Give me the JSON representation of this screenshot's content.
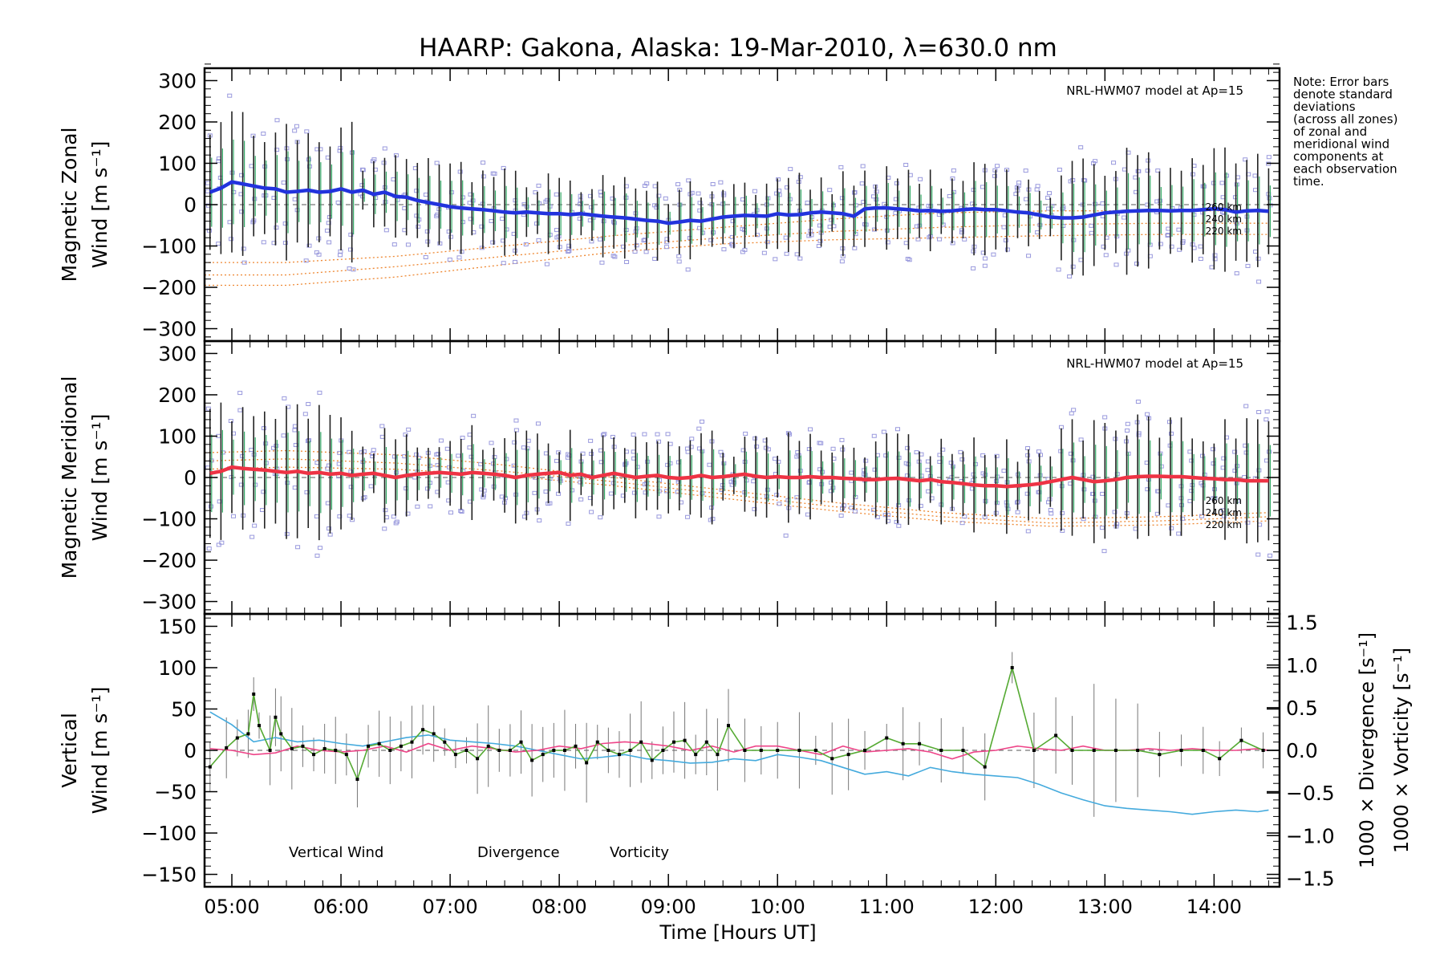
{
  "figure": {
    "title": "HAARP: Gakona,  Alaska: 19-Mar-2010, λ=630.0 nm",
    "note": [
      "Note: Error bars",
      "denote standard",
      "deviations",
      "(across all zones)",
      "of zonal and",
      "meridional wind",
      "components at",
      "each observation",
      "time."
    ],
    "xlabel": "Time [Hours UT]",
    "xticks": [
      "05:00",
      "06:00",
      "07:00",
      "08:00",
      "09:00",
      "10:00",
      "11:00",
      "12:00",
      "13:00",
      "14:00"
    ],
    "model_label": "NRL-HWM07 model at Ap=15",
    "altitude_labels": [
      "260 km",
      "240 km",
      "220 km"
    ],
    "colors": {
      "zonal": "#2233dd",
      "meridional": "#ee3344",
      "vertical": "#55aa33",
      "divergence": "#44aadd",
      "vorticity": "#ee4488",
      "model": "#ee8833",
      "scatter": "#9999dd",
      "errorbar": "#000000"
    }
  },
  "chart_data": [
    {
      "type": "line",
      "panel": "zonal",
      "ylabel": [
        "Magnetic Zonal",
        "Wind [m s⁻¹]"
      ],
      "ylim": [
        -330,
        330
      ],
      "yticks": [
        300,
        200,
        100,
        0,
        -100,
        -200,
        -300
      ],
      "xlim": [
        4.75,
        14.6
      ],
      "series": [
        {
          "x": [
            4.8,
            4.9,
            5.0,
            5.1,
            5.2,
            5.3,
            5.4,
            5.5,
            5.6,
            5.7,
            5.8,
            5.9,
            6.0,
            6.1,
            6.2,
            6.3,
            6.4,
            6.5,
            6.6,
            6.7,
            6.8,
            6.9,
            7.0,
            7.1,
            7.2,
            7.3,
            7.4,
            7.5,
            7.6,
            7.7,
            7.8,
            7.9,
            8.0,
            8.1,
            8.2,
            8.3,
            8.4,
            8.5,
            8.6,
            8.7,
            8.8,
            8.9,
            9.0,
            9.1,
            9.2,
            9.3,
            9.4,
            9.5,
            9.6,
            9.7,
            9.8,
            9.9,
            10.0,
            10.1,
            10.2,
            10.3,
            10.4,
            10.5,
            10.6,
            10.7,
            10.8,
            10.9,
            11.0,
            11.1,
            11.2,
            11.3,
            11.4,
            11.5,
            11.6,
            11.7,
            11.8,
            11.9,
            12.0,
            12.1,
            12.2,
            12.3,
            12.4,
            12.5,
            12.6,
            12.7,
            12.8,
            12.9,
            13.0,
            13.1,
            13.2,
            13.3,
            13.4,
            13.5,
            13.6,
            13.7,
            13.8,
            13.9,
            14.0,
            14.1,
            14.2,
            14.3,
            14.4,
            14.5
          ],
          "values": [
            30,
            40,
            55,
            50,
            45,
            40,
            38,
            30,
            32,
            35,
            30,
            32,
            38,
            30,
            35,
            25,
            30,
            20,
            18,
            10,
            5,
            0,
            -5,
            -8,
            -10,
            -12,
            -15,
            -18,
            -20,
            -18,
            -20,
            -22,
            -22,
            -24,
            -22,
            -25,
            -28,
            -30,
            -32,
            -35,
            -38,
            -40,
            -45,
            -42,
            -38,
            -40,
            -35,
            -30,
            -28,
            -26,
            -27,
            -28,
            -22,
            -25,
            -24,
            -20,
            -18,
            -20,
            -22,
            -28,
            -10,
            -8,
            -8,
            -10,
            -12,
            -15,
            -14,
            -16,
            -15,
            -12,
            -10,
            -12,
            -12,
            -15,
            -18,
            -20,
            -25,
            -30,
            -32,
            -32,
            -30,
            -25,
            -20,
            -18,
            -16,
            -15,
            -14,
            -14,
            -15,
            -14,
            -14,
            -12,
            -10,
            -12,
            -18,
            -15,
            -14,
            -16
          ]
        }
      ],
      "model_curves": [
        {
          "name": "260 km",
          "x": [
            4.75,
            5.5,
            6.5,
            7.5,
            8.5,
            9.5,
            10.5,
            11.5,
            12.5,
            13.5,
            14.5
          ],
          "values": [
            -140,
            -140,
            -125,
            -100,
            -75,
            -55,
            -35,
            -20,
            -15,
            -15,
            -15
          ]
        },
        {
          "name": "240 km",
          "x": [
            4.75,
            5.5,
            6.5,
            7.5,
            8.5,
            9.5,
            10.5,
            11.5,
            12.5,
            13.5,
            14.5
          ],
          "values": [
            -170,
            -170,
            -150,
            -125,
            -100,
            -80,
            -65,
            -55,
            -48,
            -45,
            -45
          ]
        },
        {
          "name": "220 km",
          "x": [
            4.75,
            5.5,
            6.5,
            7.5,
            8.5,
            9.5,
            10.5,
            11.5,
            12.5,
            13.5,
            14.5
          ],
          "values": [
            -195,
            -195,
            -175,
            -145,
            -115,
            -95,
            -85,
            -80,
            -75,
            -72,
            -72
          ]
        }
      ],
      "reference_line": 0
    },
    {
      "type": "line",
      "panel": "meridional",
      "ylabel": [
        "Magnetic Meridional",
        "Wind [m s⁻¹]"
      ],
      "ylim": [
        -330,
        330
      ],
      "yticks": [
        300,
        200,
        100,
        0,
        -100,
        -200,
        -300
      ],
      "xlim": [
        4.75,
        14.6
      ],
      "series": [
        {
          "x": [
            4.8,
            4.9,
            5.0,
            5.1,
            5.2,
            5.3,
            5.4,
            5.5,
            5.6,
            5.7,
            5.8,
            5.9,
            6.0,
            6.1,
            6.2,
            6.3,
            6.4,
            6.5,
            6.6,
            6.7,
            6.8,
            6.9,
            7.0,
            7.1,
            7.2,
            7.3,
            7.4,
            7.5,
            7.6,
            7.7,
            7.8,
            7.9,
            8.0,
            8.1,
            8.2,
            8.3,
            8.4,
            8.5,
            8.6,
            8.7,
            8.8,
            8.9,
            9.0,
            9.1,
            9.2,
            9.3,
            9.4,
            9.5,
            9.6,
            9.7,
            9.8,
            9.9,
            10.0,
            10.1,
            10.2,
            10.3,
            10.4,
            10.5,
            10.6,
            10.7,
            10.8,
            10.9,
            11.0,
            11.1,
            11.2,
            11.3,
            11.4,
            11.5,
            11.6,
            11.7,
            11.8,
            11.9,
            12.0,
            12.1,
            12.2,
            12.3,
            12.4,
            12.5,
            12.6,
            12.7,
            12.8,
            12.9,
            13.0,
            13.1,
            13.2,
            13.3,
            13.4,
            13.5,
            13.6,
            13.7,
            13.8,
            13.9,
            14.0,
            14.1,
            14.2,
            14.3,
            14.4,
            14.5
          ],
          "values": [
            10,
            15,
            25,
            22,
            20,
            18,
            15,
            12,
            15,
            10,
            12,
            8,
            10,
            5,
            8,
            10,
            5,
            0,
            5,
            8,
            10,
            12,
            10,
            8,
            12,
            10,
            8,
            5,
            0,
            5,
            8,
            10,
            12,
            5,
            8,
            0,
            5,
            10,
            5,
            0,
            3,
            5,
            0,
            -2,
            0,
            5,
            0,
            2,
            5,
            8,
            3,
            0,
            2,
            0,
            0,
            2,
            0,
            0,
            -2,
            -3,
            -5,
            -5,
            -3,
            -2,
            -5,
            -8,
            -5,
            -10,
            -12,
            -15,
            -18,
            -20,
            -20,
            -22,
            -20,
            -18,
            -15,
            -10,
            -5,
            0,
            -5,
            -10,
            -8,
            -5,
            0,
            2,
            3,
            3,
            2,
            2,
            0,
            -2,
            -3,
            -5,
            -5,
            -8,
            -8,
            -8
          ]
        }
      ],
      "model_curves": [
        {
          "name": "260 km",
          "x": [
            4.75,
            5.5,
            6.5,
            7.5,
            8.5,
            9.5,
            10.5,
            11.5,
            12.5,
            13.5,
            14.5
          ],
          "values": [
            60,
            65,
            55,
            30,
            0,
            -30,
            -60,
            -85,
            -100,
            -95,
            -85
          ]
        },
        {
          "name": "240 km",
          "x": [
            4.75,
            5.5,
            6.5,
            7.5,
            8.5,
            9.5,
            10.5,
            11.5,
            12.5,
            13.5,
            14.5
          ],
          "values": [
            40,
            45,
            35,
            15,
            -10,
            -40,
            -70,
            -95,
            -110,
            -105,
            -95
          ]
        },
        {
          "name": "220 km",
          "x": [
            4.75,
            5.5,
            6.5,
            7.5,
            8.5,
            9.5,
            10.5,
            11.5,
            12.5,
            13.5,
            14.5
          ],
          "values": [
            20,
            25,
            20,
            5,
            -20,
            -50,
            -80,
            -105,
            -118,
            -115,
            -105
          ]
        }
      ],
      "reference_line": 0
    },
    {
      "type": "line",
      "panel": "vertical",
      "ylabel_left": [
        "Vertical",
        "Wind [m s⁻¹]"
      ],
      "ylabel_right_1": "1000 × Divergence [s⁻¹]",
      "ylabel_right_2": "1000 × Vorticity [s⁻¹]",
      "ylim": [
        -165,
        165
      ],
      "yticks": [
        150,
        100,
        50,
        0,
        -50,
        -100,
        -150
      ],
      "y2lim": [
        -1.6,
        1.6
      ],
      "y2ticks": [
        1.5,
        1.0,
        0.5,
        0.0,
        -0.5,
        -1.0,
        -1.5
      ],
      "y2ticklabels": [
        "1.5",
        "1.0",
        "0.5",
        "0.0",
        "−0.5",
        "−1.0",
        "−1.5"
      ],
      "xlim": [
        4.75,
        14.6
      ],
      "legend": [
        "Vertical Wind",
        "Divergence",
        "Vorticity"
      ],
      "series": [
        {
          "name": "Vertical Wind",
          "axis": "left",
          "x": [
            4.8,
            4.95,
            5.05,
            5.15,
            5.2,
            5.25,
            5.35,
            5.4,
            5.45,
            5.55,
            5.65,
            5.75,
            5.85,
            5.95,
            6.05,
            6.15,
            6.25,
            6.35,
            6.45,
            6.55,
            6.65,
            6.75,
            6.85,
            6.95,
            7.05,
            7.15,
            7.25,
            7.35,
            7.45,
            7.55,
            7.65,
            7.75,
            7.85,
            7.95,
            8.05,
            8.15,
            8.25,
            8.35,
            8.45,
            8.55,
            8.65,
            8.75,
            8.85,
            8.95,
            9.05,
            9.15,
            9.25,
            9.35,
            9.45,
            9.55,
            9.7,
            9.85,
            10.0,
            10.2,
            10.35,
            10.5,
            10.65,
            10.8,
            11.0,
            11.15,
            11.3,
            11.5,
            11.7,
            11.9,
            12.15,
            12.35,
            12.55,
            12.7,
            12.9,
            13.1,
            13.3,
            13.5,
            13.7,
            13.9,
            14.05,
            14.25,
            14.45
          ],
          "values": [
            -20,
            3,
            15,
            20,
            68,
            30,
            0,
            40,
            20,
            2,
            5,
            -5,
            2,
            0,
            -5,
            -35,
            5,
            8,
            0,
            5,
            10,
            25,
            20,
            10,
            -5,
            0,
            -10,
            5,
            0,
            0,
            10,
            -12,
            -5,
            0,
            0,
            5,
            -15,
            10,
            0,
            -5,
            0,
            10,
            -12,
            0,
            10,
            12,
            -5,
            10,
            -5,
            30,
            0,
            0,
            0,
            0,
            0,
            -10,
            -5,
            0,
            15,
            8,
            8,
            0,
            0,
            -20,
            100,
            0,
            18,
            0,
            0,
            0,
            0,
            -5,
            0,
            0,
            -10,
            12,
            0
          ]
        },
        {
          "name": "Divergence",
          "axis": "right",
          "x": [
            4.8,
            5.0,
            5.2,
            5.4,
            5.6,
            5.8,
            6.0,
            6.2,
            6.4,
            6.6,
            6.8,
            7.0,
            7.2,
            7.4,
            7.6,
            7.8,
            8.0,
            8.2,
            8.4,
            8.6,
            8.8,
            9.0,
            9.2,
            9.4,
            9.6,
            9.8,
            10.0,
            10.2,
            10.4,
            10.6,
            10.8,
            11.0,
            11.2,
            11.4,
            11.6,
            11.8,
            12.0,
            12.2,
            12.4,
            12.6,
            12.8,
            13.0,
            13.2,
            13.4,
            13.6,
            13.8,
            14.0,
            14.2,
            14.4,
            14.5
          ],
          "values": [
            0.45,
            0.3,
            0.1,
            0.15,
            0.1,
            0.12,
            0.08,
            0.05,
            0.1,
            0.15,
            0.18,
            0.12,
            0.1,
            0.08,
            0.05,
            0.0,
            -0.05,
            -0.1,
            -0.08,
            -0.05,
            -0.1,
            -0.12,
            -0.15,
            -0.14,
            -0.1,
            -0.12,
            -0.05,
            -0.08,
            -0.12,
            -0.2,
            -0.28,
            -0.25,
            -0.3,
            -0.2,
            -0.25,
            -0.28,
            -0.3,
            -0.32,
            -0.4,
            -0.5,
            -0.58,
            -0.65,
            -0.68,
            -0.7,
            -0.72,
            -0.75,
            -0.72,
            -0.7,
            -0.72,
            -0.7
          ]
        },
        {
          "name": "Vorticity",
          "axis": "right",
          "x": [
            4.8,
            5.0,
            5.2,
            5.4,
            5.6,
            5.8,
            6.0,
            6.2,
            6.4,
            6.6,
            6.8,
            7.0,
            7.2,
            7.4,
            7.6,
            7.8,
            8.0,
            8.2,
            8.4,
            8.6,
            8.8,
            9.0,
            9.2,
            9.4,
            9.6,
            9.8,
            10.0,
            10.2,
            10.4,
            10.6,
            10.8,
            11.0,
            11.2,
            11.4,
            11.6,
            11.8,
            12.0,
            12.2,
            12.4,
            12.6,
            12.8,
            13.0,
            13.2,
            13.4,
            13.6,
            13.8,
            14.0,
            14.2,
            14.4,
            14.5
          ],
          "values": [
            0.02,
            0.0,
            -0.05,
            -0.03,
            0.05,
            0.0,
            -0.02,
            0.0,
            0.05,
            -0.02,
            0.08,
            0.0,
            0.05,
            0.02,
            -0.02,
            0.0,
            0.05,
            0.02,
            0.08,
            0.1,
            0.08,
            0.05,
            0.0,
            0.05,
            -0.02,
            0.05,
            0.05,
            0.0,
            -0.05,
            0.05,
            -0.02,
            0.0,
            0.02,
            -0.02,
            -0.1,
            -0.02,
            0.0,
            0.05,
            0.02,
            0.0,
            0.05,
            0.0,
            0.0,
            0.02,
            0.0,
            0.02,
            0.0,
            0.0,
            0.02,
            0.0
          ]
        }
      ],
      "reference_line": 0
    }
  ]
}
